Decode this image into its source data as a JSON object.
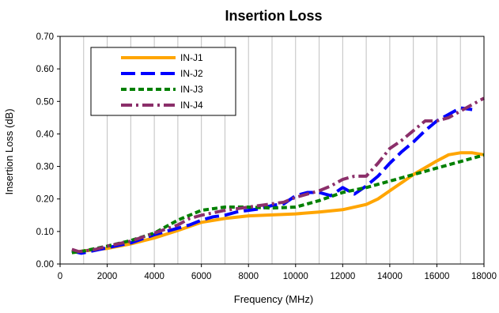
{
  "chart_data": {
    "type": "line",
    "title": "Insertion Loss",
    "xlabel": "Frequency (MHz)",
    "ylabel": "Insertion Loss  (dB)",
    "xlim": [
      0,
      18000
    ],
    "ylim": [
      0,
      0.7
    ],
    "x_ticks": [
      0,
      2000,
      4000,
      6000,
      8000,
      10000,
      12000,
      14000,
      16000,
      18000
    ],
    "x_tick_labels": [
      "0",
      "2000",
      "4000",
      "6000",
      "8000",
      "10000",
      "12000",
      "14000",
      "16000",
      "18000"
    ],
    "y_ticks": [
      0,
      0.1,
      0.2,
      0.3,
      0.4,
      0.5,
      0.6,
      0.7
    ],
    "y_tick_labels": [
      "0.00",
      "0.10",
      "0.20",
      "0.30",
      "0.40",
      "0.50",
      "0.60",
      "0.70"
    ],
    "grid": "vertical",
    "legend_position": "top-left",
    "series": [
      {
        "name": "IN-J1",
        "color": "#FFA500",
        "dash": "solid",
        "x": [
          500,
          1000,
          2000,
          3000,
          4000,
          5000,
          6000,
          7000,
          8000,
          9000,
          10000,
          11000,
          12000,
          13000,
          13500,
          14000,
          15000,
          16000,
          16500,
          17000,
          17500,
          18000
        ],
        "y": [
          0.035,
          0.04,
          0.048,
          0.062,
          0.08,
          0.103,
          0.128,
          0.14,
          0.148,
          0.151,
          0.154,
          0.16,
          0.167,
          0.183,
          0.2,
          0.225,
          0.275,
          0.317,
          0.336,
          0.342,
          0.342,
          0.336
        ]
      },
      {
        "name": "IN-J2",
        "color": "#0000FF",
        "dash": "long-dash",
        "x": [
          500,
          900,
          1500,
          2000,
          3000,
          4000,
          5000,
          5500,
          6000,
          6500,
          7000,
          7500,
          8000,
          8500,
          9000,
          9500,
          10000,
          10500,
          11000,
          11500,
          12000,
          12500,
          13000,
          13500,
          14000,
          14500,
          15000,
          15500,
          16000,
          16500,
          17000,
          17500
        ],
        "y": [
          0.04,
          0.033,
          0.042,
          0.05,
          0.065,
          0.09,
          0.11,
          0.12,
          0.135,
          0.145,
          0.15,
          0.16,
          0.165,
          0.17,
          0.18,
          0.185,
          0.21,
          0.22,
          0.22,
          0.21,
          0.235,
          0.215,
          0.24,
          0.27,
          0.31,
          0.345,
          0.375,
          0.41,
          0.44,
          0.46,
          0.48,
          0.475
        ]
      },
      {
        "name": "IN-J3",
        "color": "#008000",
        "dash": "short-dash",
        "x": [
          500,
          1000,
          2000,
          3000,
          4000,
          5000,
          6000,
          7000,
          8000,
          9000,
          10000,
          11000,
          12000,
          13000,
          14000,
          15000,
          16000,
          17000,
          18000
        ],
        "y": [
          0.035,
          0.04,
          0.055,
          0.072,
          0.095,
          0.135,
          0.165,
          0.175,
          0.175,
          0.172,
          0.175,
          0.195,
          0.22,
          0.235,
          0.255,
          0.275,
          0.295,
          0.315,
          0.335
        ]
      },
      {
        "name": "IN-J4",
        "color": "#8B2F6A",
        "dash": "dash-dot",
        "x": [
          500,
          800,
          1500,
          2000,
          3000,
          4000,
          5000,
          5500,
          6000,
          7000,
          8000,
          9000,
          9500,
          10000,
          11000,
          11500,
          12000,
          12500,
          13000,
          13500,
          14000,
          14500,
          15000,
          15500,
          16000,
          16500,
          17000,
          17500,
          18000
        ],
        "y": [
          0.045,
          0.038,
          0.045,
          0.055,
          0.07,
          0.095,
          0.12,
          0.14,
          0.15,
          0.165,
          0.175,
          0.185,
          0.19,
          0.205,
          0.225,
          0.24,
          0.26,
          0.27,
          0.27,
          0.31,
          0.355,
          0.38,
          0.41,
          0.44,
          0.44,
          0.45,
          0.47,
          0.49,
          0.51
        ]
      }
    ]
  }
}
